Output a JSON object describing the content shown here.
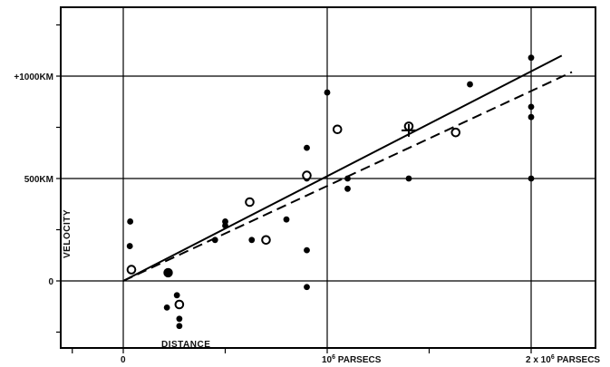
{
  "chart_data": {
    "type": "scatter",
    "title": "",
    "xlabel": "DISTANCE",
    "ylabel": "VELOCITY",
    "xlim": [
      -0.3,
      2.35
    ],
    "ylim": [
      -330,
      1350
    ],
    "x_unit_note": "10^6 parsecs",
    "grid": true,
    "x_ticks": [
      {
        "value": 0,
        "label": "0",
        "sup": "",
        "suffix": ""
      },
      {
        "value": 1,
        "label": "10",
        "sup": "6",
        "suffix": " PARSECS"
      },
      {
        "value": 2,
        "label": "2 x 10",
        "sup": "6",
        "suffix": " PARSECS"
      }
    ],
    "y_ticks": [
      {
        "value": 0,
        "label": "0"
      },
      {
        "value": 500,
        "label": "500KM"
      },
      {
        "value": 1000,
        "label": "+1000KM"
      }
    ],
    "series": [
      {
        "marker": "filled-circle",
        "x": [
          0.032,
          0.034,
          0.214,
          0.263,
          0.275,
          0.275,
          0.45,
          0.5,
          0.5,
          0.63,
          0.8,
          0.9,
          0.9,
          0.9,
          0.9,
          1.0,
          1.1,
          1.1,
          1.4,
          1.7,
          2.0,
          2.0,
          2.0,
          2.0
        ],
        "y": [
          170,
          290,
          -130,
          -70,
          -185,
          -220,
          200,
          290,
          270,
          200,
          300,
          -30,
          650,
          150,
          500,
          920,
          450,
          500,
          500,
          960,
          500,
          850,
          800,
          1090
        ]
      },
      {
        "marker": "open-circle",
        "x": [
          0.04,
          0.275,
          0.62,
          0.7,
          0.9,
          1.05,
          1.4,
          1.63
        ],
        "y": [
          55,
          -115,
          385,
          200,
          515,
          740,
          755,
          725
        ]
      },
      {
        "marker": "large-filled-circle",
        "x": [
          0.22
        ],
        "y": [
          40
        ]
      },
      {
        "marker": "cross",
        "x": [
          1.4
        ],
        "y": [
          735
        ]
      }
    ],
    "lines": [
      {
        "style": "solid",
        "x": [
          0,
          2.15
        ],
        "y": [
          0,
          1100
        ]
      },
      {
        "style": "dashed",
        "x": [
          0,
          2.2
        ],
        "y": [
          0,
          1020
        ]
      }
    ]
  }
}
